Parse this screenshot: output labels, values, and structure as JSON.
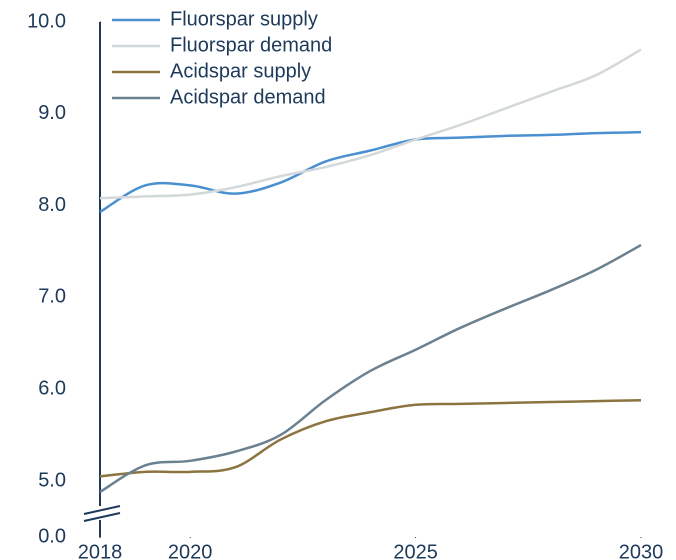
{
  "chart_data": {
    "type": "line",
    "x": [
      2018,
      2019,
      2020,
      2021,
      2022,
      2023,
      2024,
      2025,
      2026,
      2027,
      2028,
      2029,
      2030
    ],
    "series": [
      {
        "name": "Fluorspar supply",
        "color": "#4a90d0",
        "values": [
          7.93,
          8.22,
          8.22,
          8.13,
          8.25,
          8.48,
          8.6,
          8.72,
          8.74,
          8.76,
          8.77,
          8.79,
          8.8
        ]
      },
      {
        "name": "Fluorspar demand",
        "color": "#d3d8db",
        "values": [
          8.08,
          8.1,
          8.12,
          8.2,
          8.32,
          8.42,
          8.55,
          8.72,
          8.88,
          9.06,
          9.24,
          9.42,
          9.7
        ]
      },
      {
        "name": "Acidspar supply",
        "color": "#8c7440",
        "values": [
          5.05,
          5.1,
          5.1,
          5.15,
          5.45,
          5.65,
          5.75,
          5.83,
          5.84,
          5.85,
          5.86,
          5.87,
          5.88
        ]
      },
      {
        "name": "Acidspar demand",
        "color": "#6b8190",
        "values": [
          4.88,
          5.17,
          5.22,
          5.32,
          5.5,
          5.88,
          6.2,
          6.43,
          6.67,
          6.88,
          7.08,
          7.3,
          7.57
        ]
      }
    ],
    "xlim": [
      2018,
      2030
    ],
    "xticks": [
      2018,
      2020,
      2025,
      2030
    ],
    "ylim": [
      0,
      10
    ],
    "yticks": [
      {
        "value": 0,
        "label": "0.0"
      },
      {
        "value": 5,
        "label": "5.0"
      },
      {
        "value": 6,
        "label": "6.0"
      },
      {
        "value": 7,
        "label": "7.0"
      },
      {
        "value": 8,
        "label": "8.0"
      },
      {
        "value": 9,
        "label": "9.0"
      },
      {
        "value": 10,
        "label": "10.0"
      }
    ],
    "axis_break": true,
    "grid": false,
    "legend": "upper left"
  }
}
